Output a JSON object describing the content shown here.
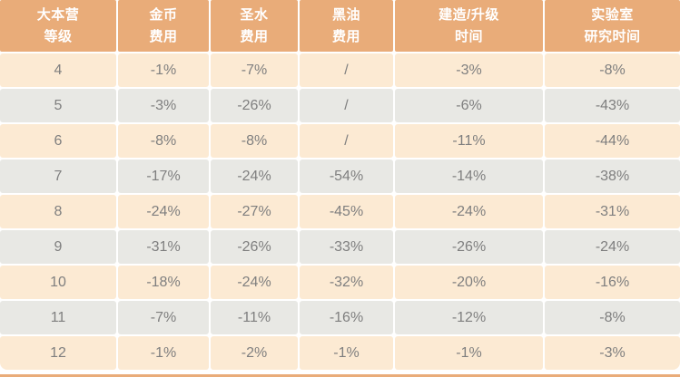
{
  "colors": {
    "header_bg": "#E9AC79",
    "header_text": "#FFFFFF",
    "row_light": "#FCEAD3",
    "row_gray": "#E8E8E4",
    "data_text": "#7F7F7F",
    "gap": "#FFFFFF"
  },
  "table": {
    "headers": [
      {
        "line1": "大本营",
        "line2": "等级"
      },
      {
        "line1": "金币",
        "line2": "费用"
      },
      {
        "line1": "圣水",
        "line2": "费用"
      },
      {
        "line1": "黑油",
        "line2": "费用"
      },
      {
        "line1": "建造/升级",
        "line2": "时间"
      },
      {
        "line1": "实验室",
        "line2": "研究时间"
      }
    ],
    "rows": [
      {
        "cells": [
          "4",
          "-1%",
          "-7%",
          "/",
          "-3%",
          "-8%"
        ]
      },
      {
        "cells": [
          "5",
          "-3%",
          "-26%",
          "/",
          "-6%",
          "-43%"
        ]
      },
      {
        "cells": [
          "6",
          "-8%",
          "-8%",
          "/",
          "-11%",
          "-44%"
        ]
      },
      {
        "cells": [
          "7",
          "-17%",
          "-24%",
          "-54%",
          "-14%",
          "-38%"
        ]
      },
      {
        "cells": [
          "8",
          "-24%",
          "-27%",
          "-45%",
          "-24%",
          "-31%"
        ]
      },
      {
        "cells": [
          "9",
          "-31%",
          "-26%",
          "-33%",
          "-26%",
          "-24%"
        ]
      },
      {
        "cells": [
          "10",
          "-18%",
          "-24%",
          "-32%",
          "-20%",
          "-16%"
        ]
      },
      {
        "cells": [
          "11",
          "-7%",
          "-11%",
          "-16%",
          "-12%",
          "-8%"
        ]
      },
      {
        "cells": [
          "12",
          "-1%",
          "-2%",
          "-1%",
          "-1%",
          "-3%"
        ]
      }
    ]
  },
  "chart_data": {
    "type": "table",
    "title": "",
    "columns": [
      "大本营等级",
      "金币费用",
      "圣水费用",
      "黑油费用",
      "建造/升级时间",
      "实验室研究时间"
    ],
    "rows": [
      [
        "4",
        "-1%",
        "-7%",
        "/",
        "-3%",
        "-8%"
      ],
      [
        "5",
        "-3%",
        "-26%",
        "/",
        "-6%",
        "-43%"
      ],
      [
        "6",
        "-8%",
        "-8%",
        "/",
        "-11%",
        "-44%"
      ],
      [
        "7",
        "-17%",
        "-24%",
        "-54%",
        "-14%",
        "-38%"
      ],
      [
        "8",
        "-24%",
        "-27%",
        "-45%",
        "-24%",
        "-31%"
      ],
      [
        "9",
        "-31%",
        "-26%",
        "-33%",
        "-26%",
        "-24%"
      ],
      [
        "10",
        "-18%",
        "-24%",
        "-32%",
        "-20%",
        "-16%"
      ],
      [
        "11",
        "-7%",
        "-11%",
        "-16%",
        "-12%",
        "-8%"
      ],
      [
        "12",
        "-1%",
        "-2%",
        "-1%",
        "-1%",
        "-3%"
      ]
    ]
  }
}
